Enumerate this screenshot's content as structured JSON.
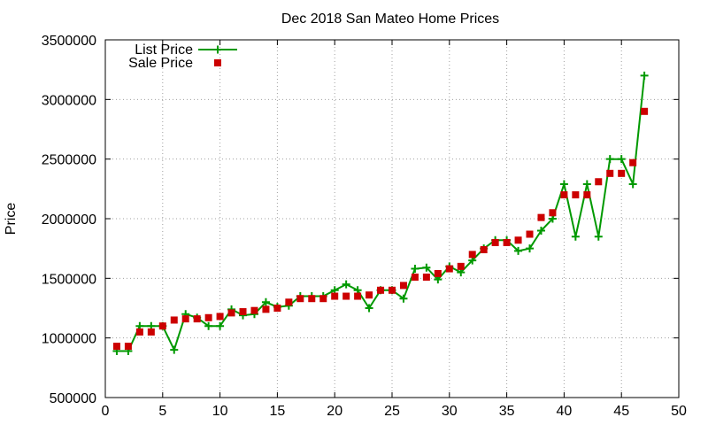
{
  "chart_data": {
    "type": "line",
    "title": "Dec 2018 San Mateo Home Prices",
    "xlabel": "",
    "ylabel": "Price",
    "xlim": [
      0,
      50
    ],
    "ylim": [
      500000,
      3500000
    ],
    "xticks": [
      0,
      5,
      10,
      15,
      20,
      25,
      30,
      35,
      40,
      45,
      50
    ],
    "yticks": [
      500000,
      1000000,
      1500000,
      2000000,
      2500000,
      3000000,
      3500000
    ],
    "xtick_labels": [
      "0",
      "5",
      "10",
      "15",
      "20",
      "25",
      "30",
      "35",
      "40",
      "45",
      "50"
    ],
    "ytick_labels": [
      "500000",
      "1000000",
      "1500000",
      "2000000",
      "2500000",
      "3000000",
      "3500000"
    ],
    "grid": true,
    "legend": "top-left",
    "series": [
      {
        "name": "List Price",
        "style": "line+cross",
        "color": "#009900",
        "x": [
          1,
          2,
          3,
          4,
          5,
          6,
          7,
          8,
          9,
          10,
          11,
          12,
          13,
          14,
          15,
          16,
          17,
          18,
          19,
          20,
          21,
          22,
          23,
          24,
          25,
          26,
          27,
          28,
          29,
          30,
          31,
          32,
          33,
          34,
          35,
          36,
          37,
          38,
          39,
          40,
          41,
          42,
          43,
          44,
          45,
          46,
          47
        ],
        "values": [
          890000,
          890000,
          1100000,
          1100000,
          1100000,
          900000,
          1200000,
          1170000,
          1100000,
          1100000,
          1240000,
          1190000,
          1200000,
          1300000,
          1260000,
          1270000,
          1350000,
          1350000,
          1350000,
          1400000,
          1450000,
          1400000,
          1250000,
          1400000,
          1400000,
          1330000,
          1580000,
          1590000,
          1490000,
          1600000,
          1550000,
          1650000,
          1750000,
          1820000,
          1820000,
          1730000,
          1750000,
          1900000,
          2000000,
          2290000,
          1850000,
          2290000,
          1850000,
          2500000,
          2500000,
          2290000,
          3200000
        ]
      },
      {
        "name": "Sale Price",
        "style": "square",
        "color": "#cc0000",
        "x": [
          1,
          2,
          3,
          4,
          5,
          6,
          7,
          8,
          9,
          10,
          11,
          12,
          13,
          14,
          15,
          16,
          17,
          18,
          19,
          20,
          21,
          22,
          23,
          24,
          25,
          26,
          27,
          28,
          29,
          30,
          31,
          32,
          33,
          34,
          35,
          36,
          37,
          38,
          39,
          40,
          41,
          42,
          43,
          44,
          45,
          46,
          47
        ],
        "values": [
          930000,
          930000,
          1050000,
          1050000,
          1100000,
          1150000,
          1160000,
          1160000,
          1170000,
          1180000,
          1210000,
          1220000,
          1230000,
          1240000,
          1250000,
          1300000,
          1330000,
          1330000,
          1330000,
          1350000,
          1350000,
          1350000,
          1360000,
          1400000,
          1400000,
          1440000,
          1510000,
          1510000,
          1540000,
          1580000,
          1600000,
          1700000,
          1740000,
          1800000,
          1800000,
          1820000,
          1870000,
          2010000,
          2050000,
          2200000,
          2200000,
          2200000,
          2310000,
          2380000,
          2380000,
          2470000,
          2900000
        ]
      }
    ]
  }
}
